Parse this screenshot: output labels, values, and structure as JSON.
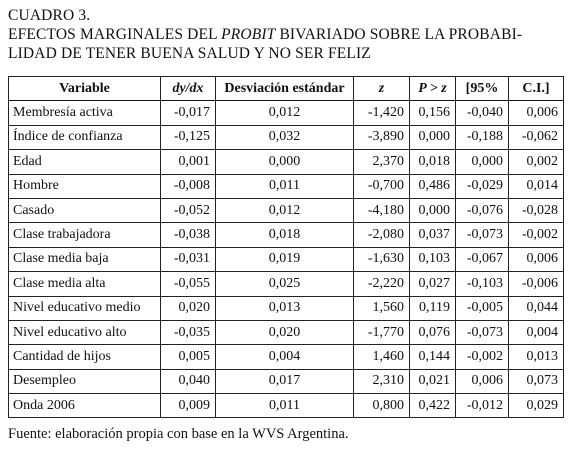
{
  "caption": {
    "label": "CUADRO 3.",
    "title_pre": "EFECTOS MARGINALES DEL ",
    "title_italic": "PROBIT",
    "title_post": " BIVARIADO SOBRE LA PROBABI-",
    "title_line2": "LIDAD DE TENER BUENA SALUD Y NO SER FELIZ"
  },
  "table": {
    "headers": [
      "Variable",
      "dy/dx",
      "Desviación estándar",
      "z",
      "P > z",
      "[95%",
      "C.I.]"
    ],
    "rows": [
      [
        "Membresía activa",
        "-0,017",
        "0,012",
        "-1,420",
        "0,156",
        "-0,040",
        "0,006"
      ],
      [
        "Índice de confianza",
        "-0,125",
        "0,032",
        "-3,890",
        "0,000",
        "-0,188",
        "-0,062"
      ],
      [
        "Edad",
        "0,001",
        "0,000",
        "2,370",
        "0,018",
        "0,000",
        "0,002"
      ],
      [
        "Hombre",
        "-0,008",
        "0,011",
        "-0,700",
        "0,486",
        "-0,029",
        "0,014"
      ],
      [
        "Casado",
        "-0,052",
        "0,012",
        "-4,180",
        "0,000",
        "-0,076",
        "-0,028"
      ],
      [
        "Clase trabajadora",
        "-0,038",
        "0,018",
        "-2,080",
        "0,037",
        "-0,073",
        "-0,002"
      ],
      [
        "Clase media baja",
        "-0,031",
        "0,019",
        "-1,630",
        "0,103",
        "-0,067",
        "0,006"
      ],
      [
        "Clase media alta",
        "-0,055",
        "0,025",
        "-2,220",
        "0,027",
        "-0,103",
        "-0,006"
      ],
      [
        "Nivel educativo medio",
        "0,020",
        "0,013",
        "1,560",
        "0,119",
        "-0,005",
        "0,044"
      ],
      [
        "Nivel educativo alto",
        "-0,035",
        "0,020",
        "-1,770",
        "0,076",
        "-0,073",
        "0,004"
      ],
      [
        "Cantidad de hijos",
        "0,005",
        "0,004",
        "1,460",
        "0,144",
        "-0,002",
        "0,013"
      ],
      [
        "Desempleo",
        "0,040",
        "0,017",
        "2,310",
        "0,021",
        "0,006",
        "0,073"
      ],
      [
        "Onda 2006",
        "0,009",
        "0,011",
        "0,800",
        "0,422",
        "-0,012",
        "0,029"
      ]
    ]
  },
  "source_note": "Fuente: elaboración propia con base en la WVS Argentina."
}
